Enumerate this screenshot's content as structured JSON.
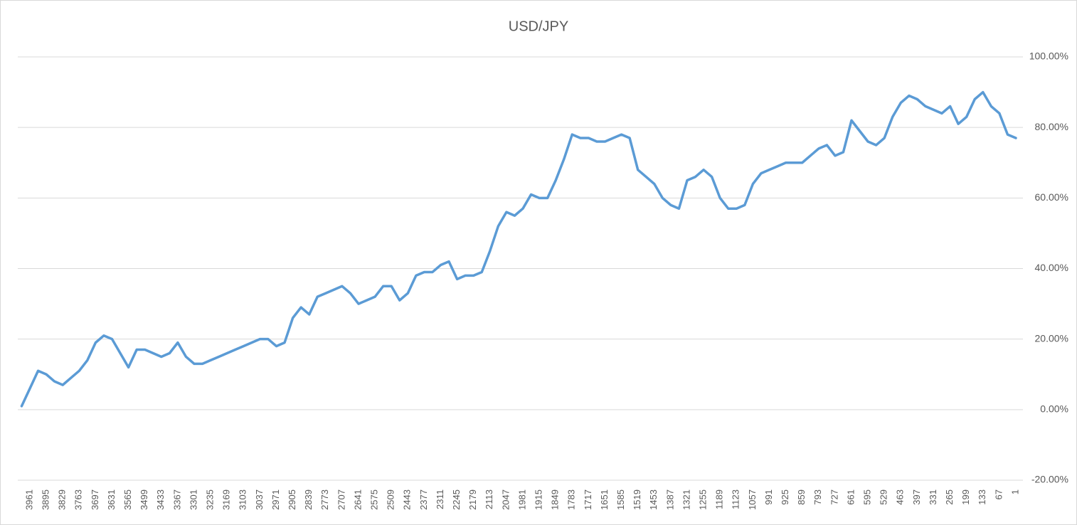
{
  "chart_data": {
    "type": "line",
    "title": "USD/JPY",
    "categories": [
      null,
      "3961",
      null,
      "3895",
      null,
      "3829",
      null,
      "3763",
      null,
      "3697",
      null,
      "3631",
      null,
      "3565",
      null,
      "3499",
      null,
      "3433",
      null,
      "3367",
      null,
      "3301",
      null,
      "3235",
      null,
      "3169",
      null,
      "3103",
      null,
      "3037",
      null,
      "2971",
      null,
      "2905",
      null,
      "2839",
      null,
      "2773",
      null,
      "2707",
      null,
      "2641",
      null,
      "2575",
      null,
      "2509",
      null,
      "2443",
      null,
      "2377",
      null,
      "2311",
      null,
      "2245",
      null,
      "2179",
      null,
      "2113",
      null,
      "2047",
      null,
      "1981",
      null,
      "1915",
      null,
      "1849",
      null,
      "1783",
      null,
      "1717",
      null,
      "1651",
      null,
      "1585",
      null,
      "1519",
      null,
      "1453",
      null,
      "1387",
      null,
      "1321",
      null,
      "1255",
      null,
      "1189",
      null,
      "1123",
      null,
      "1057",
      null,
      "991",
      null,
      "925",
      null,
      "859",
      null,
      "793",
      null,
      "727",
      null,
      "661",
      null,
      "595",
      null,
      "529",
      null,
      "463",
      null,
      "397",
      null,
      "331",
      null,
      "265",
      null,
      "199",
      null,
      "133",
      null,
      "67",
      null,
      "1"
    ],
    "series": [
      {
        "name": "USD/JPY",
        "color": "#5b9bd5",
        "values": [
          1,
          6,
          11,
          10,
          8,
          7,
          9,
          11,
          14,
          19,
          21,
          20,
          16,
          12,
          17,
          17,
          16,
          15,
          16,
          19,
          15,
          13,
          13,
          14,
          15,
          16,
          17,
          18,
          19,
          20,
          20,
          18,
          19,
          26,
          29,
          27,
          32,
          33,
          34,
          35,
          33,
          30,
          31,
          32,
          35,
          35,
          31,
          33,
          38,
          39,
          39,
          41,
          42,
          37,
          38,
          38,
          39,
          45,
          52,
          56,
          55,
          57,
          61,
          60,
          60,
          65,
          71,
          78,
          77,
          77,
          76,
          76,
          77,
          78,
          77,
          68,
          66,
          64,
          60,
          58,
          57,
          65,
          66,
          68,
          66,
          60,
          57,
          57,
          58,
          64,
          67,
          68,
          69,
          70,
          70,
          70,
          72,
          74,
          75,
          72,
          73,
          82,
          79,
          76,
          75,
          77,
          83,
          87,
          89,
          88,
          86,
          85,
          84,
          86,
          81,
          83,
          88,
          90,
          86,
          84,
          78,
          77
        ]
      }
    ],
    "ylim": [
      -20,
      100
    ],
    "yticks": [
      {
        "value": -20,
        "label": "-20.00%"
      },
      {
        "value": 0,
        "label": "0.00%"
      },
      {
        "value": 20,
        "label": "20.00%"
      },
      {
        "value": 40,
        "label": "40.00%"
      },
      {
        "value": 60,
        "label": "60.00%"
      },
      {
        "value": 80,
        "label": "80.00%"
      },
      {
        "value": 100,
        "label": "100.00%"
      }
    ],
    "grid": true
  }
}
